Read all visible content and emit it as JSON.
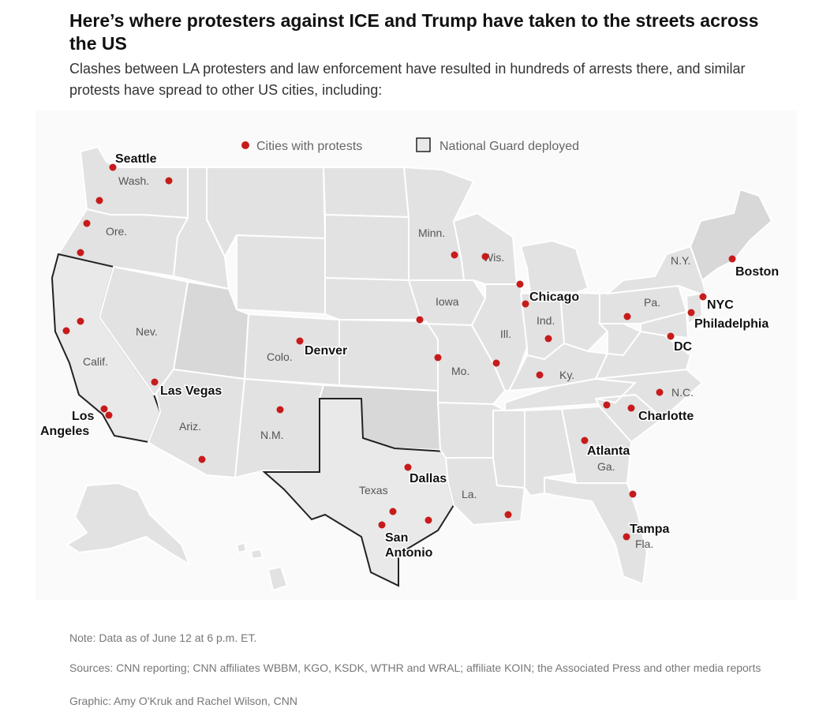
{
  "header": {
    "title": "Here’s where protesters against ICE and Trump have taken to the streets across the US",
    "subtitle": "Clashes between LA protesters and law enforcement have resulted in hundreds of arrests there, and similar protests have spread to other US cities, including:"
  },
  "legend": {
    "protests_label": "Cities with protests",
    "guard_label": "National Guard deployed"
  },
  "colors": {
    "protest_dot": "#c71b1b",
    "state_fill": "#e2e2e2",
    "guard_outline": "#222222"
  },
  "state_labels": {
    "wash": "Wash.",
    "ore": "Ore.",
    "calif": "Calif.",
    "nev": "Nev.",
    "ariz": "Ariz.",
    "colo": "Colo.",
    "nm": "N.M.",
    "texas": "Texas",
    "minn": "Minn.",
    "iowa": "Iowa",
    "mo": "Mo.",
    "wis": "Wis.",
    "ill": "Ill.",
    "ind": "Ind.",
    "ky": "Ky.",
    "la": "La.",
    "ga": "Ga.",
    "fla": "Fla.",
    "nc": "N.C.",
    "pa": "Pa.",
    "ny": "N.Y."
  },
  "city_labels": {
    "seattle": "Seattle",
    "los_angeles_1": "Los",
    "los_angeles_2": "Angeles",
    "las_vegas": "Las Vegas",
    "denver": "Denver",
    "dallas": "Dallas",
    "san_antonio_1": "San",
    "san_antonio_2": "Antonio",
    "chicago": "Chicago",
    "atlanta": "Atlanta",
    "charlotte": "Charlotte",
    "tampa": "Tampa",
    "dc": "DC",
    "philadelphia": "Philadelphia",
    "nyc": "NYC",
    "boston": "Boston"
  },
  "footer": {
    "note": "Note: Data as of June 12 at 6 p.m. ET.",
    "sources": "Sources: CNN reporting; CNN affiliates WBBM, KGO, KSDK, WTHR and WRAL; affiliate KOIN; the Associated Press and other media reports",
    "credit": "Graphic: Amy O'Kruk and Rachel Wilson, CNN"
  }
}
